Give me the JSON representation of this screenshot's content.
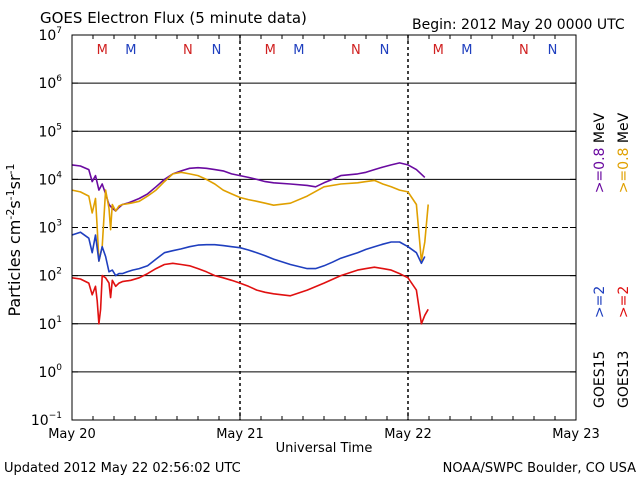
{
  "title": "GOES Electron Flux (5 minute data)",
  "begin_label": "Begin: 2012 May 20 0000 UTC",
  "updated_label": "Updated 2012 May 22 02:56:02 UTC",
  "credit_label": "NOAA/SWPC Boulder, CO USA",
  "colors": {
    "goes15_08": "#6a0aa0",
    "goes15_2": "#1f3fbf",
    "goes13_08": "#e0a000",
    "goes13_2": "#e01010",
    "marker_m": "#d02020",
    "marker_n": "#1f3fbf"
  },
  "chart_data": {
    "type": "line",
    "title": "GOES Electron Flux (5 minute data)",
    "xlabel": "Universal Time",
    "ylabel": "Particles cm⁻²s⁻¹sr⁻¹",
    "y_scale": "log",
    "ylim_exponent": [
      -1,
      7
    ],
    "xlim_days": [
      0,
      3
    ],
    "x_ticks": [
      {
        "day": 0,
        "label": "May 20"
      },
      {
        "day": 1,
        "label": "May 21"
      },
      {
        "day": 2,
        "label": "May 22"
      },
      {
        "day": 3,
        "label": "May 23"
      }
    ],
    "y_ticks": [
      {
        "exp": -1,
        "base": "10",
        "sup": "−1"
      },
      {
        "exp": 0,
        "base": "10",
        "sup": "0"
      },
      {
        "exp": 1,
        "base": "10",
        "sup": "1"
      },
      {
        "exp": 2,
        "base": "10",
        "sup": "2"
      },
      {
        "exp": 3,
        "base": "10",
        "sup": "3"
      },
      {
        "exp": 4,
        "base": "10",
        "sup": "4"
      },
      {
        "exp": 5,
        "base": "10",
        "sup": "5"
      },
      {
        "exp": 6,
        "base": "10",
        "sup": "6"
      },
      {
        "exp": 7,
        "base": "10",
        "sup": "7"
      }
    ],
    "threshold_exponent": 3,
    "markers": [
      {
        "label": "M",
        "day": 0.18,
        "color": "marker_m"
      },
      {
        "label": "M",
        "day": 0.35,
        "color": "marker_n"
      },
      {
        "label": "N",
        "day": 0.69,
        "color": "marker_m"
      },
      {
        "label": "N",
        "day": 0.86,
        "color": "marker_n"
      },
      {
        "label": "M",
        "day": 1.18,
        "color": "marker_m"
      },
      {
        "label": "M",
        "day": 1.35,
        "color": "marker_n"
      },
      {
        "label": "N",
        "day": 1.69,
        "color": "marker_m"
      },
      {
        "label": "N",
        "day": 1.86,
        "color": "marker_n"
      },
      {
        "label": "M",
        "day": 2.18,
        "color": "marker_m"
      },
      {
        "label": "M",
        "day": 2.35,
        "color": "marker_n"
      },
      {
        "label": "N",
        "day": 2.69,
        "color": "marker_m"
      },
      {
        "label": "N",
        "day": 2.86,
        "color": "marker_n"
      }
    ],
    "legend": [
      {
        "sat": "GOES15",
        "energy": ">=2",
        "energy2": ">=0.8",
        "unit": "MeV",
        "color2": "goes15_2",
        "color08": "goes15_08"
      },
      {
        "sat": "GOES13",
        "energy": ">=2",
        "energy2": ">=0.8",
        "unit": "MeV",
        "color2": "goes13_2",
        "color08": "goes13_08"
      }
    ],
    "series": [
      {
        "name": "GOES15 >=0.8 MeV",
        "color": "goes15_08",
        "x": [
          0.0,
          0.05,
          0.1,
          0.12,
          0.14,
          0.16,
          0.18,
          0.2,
          0.22,
          0.24,
          0.26,
          0.28,
          0.3,
          0.33,
          0.36,
          0.4,
          0.45,
          0.5,
          0.55,
          0.6,
          0.65,
          0.7,
          0.75,
          0.8,
          0.85,
          0.9,
          0.95,
          1.0,
          1.05,
          1.1,
          1.15,
          1.2,
          1.3,
          1.4,
          1.45,
          1.5,
          1.55,
          1.6,
          1.7,
          1.75,
          1.8,
          1.85,
          1.9,
          1.95,
          2.0,
          2.05,
          2.1
        ],
        "values": [
          20000,
          19000,
          16000,
          9000,
          12000,
          6000,
          8000,
          5000,
          3000,
          2500,
          2200,
          2600,
          3000,
          3200,
          3500,
          4000,
          5000,
          7000,
          10000,
          13000,
          15000,
          17000,
          17500,
          17000,
          16000,
          15000,
          13000,
          12000,
          11000,
          10000,
          9000,
          8500,
          8000,
          7500,
          7000,
          8500,
          10000,
          12000,
          13000,
          14000,
          16000,
          18000,
          20000,
          22000,
          20000,
          16000,
          11000
        ]
      },
      {
        "name": "GOES13 >=0.8 MeV",
        "color": "goes13_08",
        "x": [
          0.0,
          0.05,
          0.1,
          0.12,
          0.14,
          0.15,
          0.16,
          0.18,
          0.2,
          0.22,
          0.23,
          0.24,
          0.26,
          0.28,
          0.3,
          0.35,
          0.4,
          0.45,
          0.5,
          0.55,
          0.6,
          0.65,
          0.7,
          0.75,
          0.8,
          0.85,
          0.9,
          0.95,
          1.0,
          1.05,
          1.1,
          1.15,
          1.2,
          1.3,
          1.4,
          1.5,
          1.6,
          1.7,
          1.75,
          1.8,
          1.85,
          1.9,
          1.95,
          2.0,
          2.05,
          2.08,
          2.1,
          2.12
        ],
        "values": [
          6000,
          5500,
          4500,
          2000,
          4000,
          1000,
          200,
          400,
          6000,
          2500,
          900,
          3000,
          2200,
          2800,
          3000,
          3200,
          3500,
          4500,
          6000,
          9000,
          13000,
          14000,
          13000,
          12000,
          10000,
          8000,
          6000,
          5000,
          4200,
          3800,
          3500,
          3200,
          2900,
          3200,
          4500,
          7000,
          8000,
          8500,
          9000,
          9500,
          8000,
          7000,
          6000,
          5500,
          3000,
          200,
          500,
          3000
        ]
      },
      {
        "name": "GOES15 >=2 MeV",
        "color": "goes15_2",
        "x": [
          0.0,
          0.05,
          0.1,
          0.12,
          0.14,
          0.16,
          0.18,
          0.2,
          0.22,
          0.24,
          0.26,
          0.28,
          0.3,
          0.33,
          0.36,
          0.4,
          0.45,
          0.5,
          0.55,
          0.6,
          0.65,
          0.7,
          0.75,
          0.8,
          0.85,
          0.9,
          0.95,
          1.0,
          1.05,
          1.1,
          1.15,
          1.2,
          1.3,
          1.4,
          1.45,
          1.5,
          1.55,
          1.6,
          1.7,
          1.75,
          1.8,
          1.85,
          1.9,
          1.95,
          2.0,
          2.05,
          2.08,
          2.1
        ],
        "values": [
          700,
          800,
          600,
          300,
          700,
          200,
          400,
          250,
          120,
          130,
          100,
          110,
          110,
          120,
          130,
          140,
          160,
          220,
          300,
          330,
          360,
          400,
          430,
          440,
          440,
          420,
          400,
          380,
          340,
          300,
          260,
          220,
          170,
          140,
          140,
          160,
          190,
          230,
          300,
          350,
          400,
          450,
          500,
          500,
          400,
          300,
          180,
          250
        ]
      },
      {
        "name": "GOES13 >=2 MeV",
        "color": "goes13_2",
        "x": [
          0.0,
          0.05,
          0.1,
          0.12,
          0.14,
          0.15,
          0.16,
          0.17,
          0.18,
          0.2,
          0.22,
          0.23,
          0.24,
          0.26,
          0.28,
          0.3,
          0.35,
          0.4,
          0.45,
          0.5,
          0.55,
          0.6,
          0.65,
          0.7,
          0.75,
          0.8,
          0.85,
          0.9,
          0.95,
          1.0,
          1.05,
          1.1,
          1.15,
          1.2,
          1.3,
          1.4,
          1.5,
          1.6,
          1.7,
          1.75,
          1.8,
          1.85,
          1.9,
          1.95,
          2.0,
          2.05,
          2.08,
          2.1,
          2.12
        ],
        "values": [
          90,
          85,
          70,
          40,
          60,
          30,
          10,
          20,
          100,
          90,
          70,
          35,
          80,
          60,
          70,
          75,
          80,
          90,
          110,
          140,
          170,
          180,
          170,
          160,
          140,
          120,
          100,
          90,
          80,
          70,
          60,
          50,
          45,
          42,
          38,
          50,
          70,
          100,
          130,
          140,
          150,
          140,
          130,
          110,
          90,
          50,
          10,
          15,
          20
        ]
      }
    ]
  }
}
